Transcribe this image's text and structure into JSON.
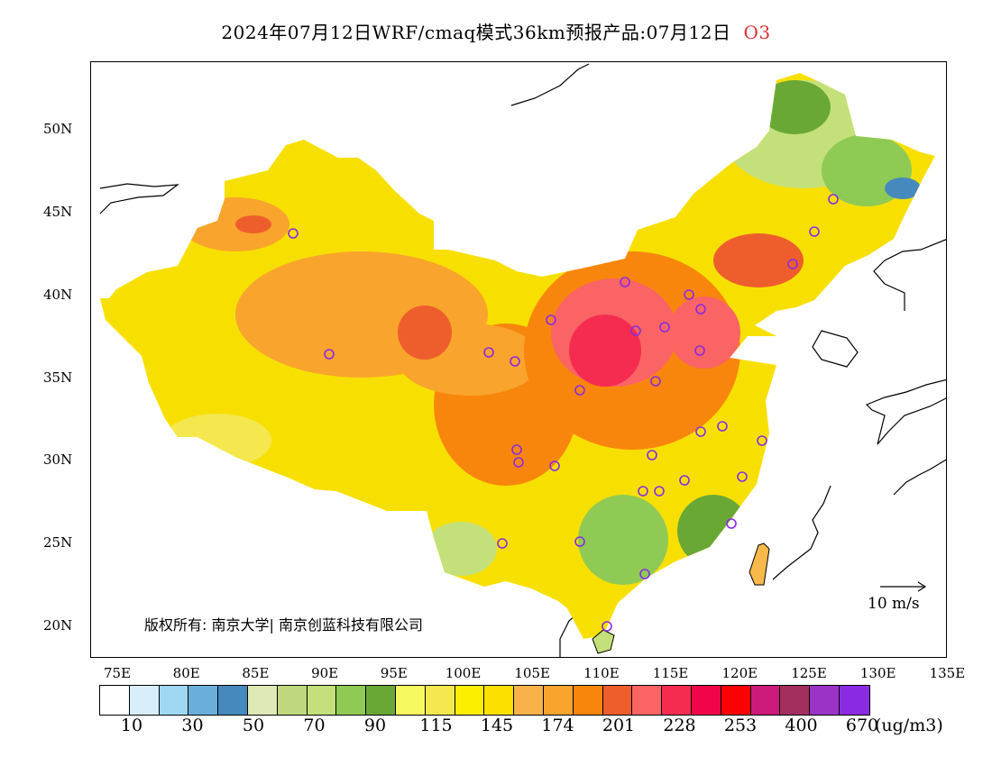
{
  "title": {
    "text": "2024年07月12日WRF/cmaq模式36km预报产品:07月12日",
    "variable": "O3",
    "variable_color": "#e03030"
  },
  "lat_labels": [
    "50N",
    "45N",
    "40N",
    "35N",
    "30N",
    "25N",
    "20N"
  ],
  "lon_labels": [
    "75E",
    "80E",
    "85E",
    "90E",
    "95E",
    "100E",
    "105E",
    "110E",
    "115E",
    "120E",
    "125E",
    "130E",
    "135E"
  ],
  "copyright": "版权所有: 南京大学| 南京创蓝科技有限公司",
  "wind_scale_label": "10 m/s",
  "colorbar": {
    "colors": [
      "#ffffff",
      "#d6effa",
      "#a0d8f3",
      "#6aaedc",
      "#4589bd",
      "#dfe9b6",
      "#bfd77e",
      "#c4e07a",
      "#8fca55",
      "#6aa836",
      "#f6f860",
      "#f5e74e",
      "#fcf000",
      "#fce100",
      "#f9b24a",
      "#f9a42c",
      "#f8860c",
      "#ee5e2c",
      "#fa6464",
      "#f52c50",
      "#f0054b",
      "#fb0000",
      "#cb1a7a",
      "#a32f5e",
      "#9a33c6",
      "#8a2be2"
    ],
    "labels": [
      "10",
      "30",
      "50",
      "70",
      "90",
      "115",
      "145",
      "174",
      "201",
      "228",
      "253",
      "400",
      "670"
    ],
    "unit": "(ug/m3)"
  },
  "colors": {
    "frame": "#000000",
    "station_marker": "#8a2be2"
  }
}
